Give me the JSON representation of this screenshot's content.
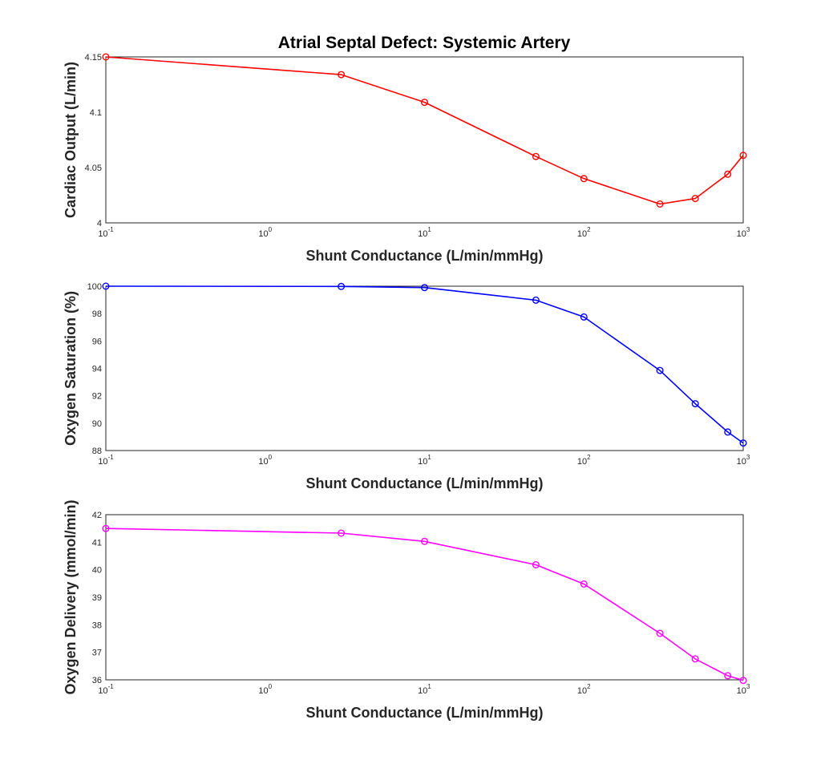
{
  "figure": {
    "title": "Atrial Septal Defect: Systemic Artery"
  },
  "chart_data": [
    {
      "type": "line",
      "title": "Atrial Septal Defect: Systemic Artery",
      "xlabel": "Shunt Conductance (L/min/mmHg)",
      "ylabel": "Cardiac Output (L/min)",
      "xscale": "log",
      "xlim": [
        0.1,
        1000
      ],
      "ylim": [
        4,
        4.15
      ],
      "x_ticks": [
        0.1,
        1,
        10,
        100,
        1000
      ],
      "x_tick_labels": [
        {
          "base": "10",
          "exp": "-1"
        },
        {
          "base": "10",
          "exp": "0"
        },
        {
          "base": "10",
          "exp": "1"
        },
        {
          "base": "10",
          "exp": "2"
        },
        {
          "base": "10",
          "exp": "3"
        }
      ],
      "y_ticks": [
        4,
        4.05,
        4.1,
        4.15
      ],
      "y_tick_labels": [
        "4",
        "4.05",
        "4.1",
        "4.15"
      ],
      "grid": true,
      "color": "#ff0000",
      "marker": "circle",
      "series": [
        {
          "x": [
            0.1,
            3,
            10,
            50,
            100,
            300,
            500,
            800,
            1000
          ],
          "y": [
            4.15,
            4.134,
            4.109,
            4.06,
            4.04,
            4.017,
            4.022,
            4.044,
            4.061
          ]
        }
      ]
    },
    {
      "type": "line",
      "title": "",
      "xlabel": "Shunt Conductance (L/min/mmHg)",
      "ylabel": "Oxygen Saturation (%)",
      "xscale": "log",
      "xlim": [
        0.1,
        1000
      ],
      "ylim": [
        88,
        100
      ],
      "x_ticks": [
        0.1,
        1,
        10,
        100,
        1000
      ],
      "x_tick_labels": [
        {
          "base": "10",
          "exp": "-1"
        },
        {
          "base": "10",
          "exp": "0"
        },
        {
          "base": "10",
          "exp": "1"
        },
        {
          "base": "10",
          "exp": "2"
        },
        {
          "base": "10",
          "exp": "3"
        }
      ],
      "y_ticks": [
        88,
        90,
        92,
        94,
        96,
        98,
        100
      ],
      "y_tick_labels": [
        "88",
        "90",
        "92",
        "94",
        "96",
        "98",
        "100"
      ],
      "grid": true,
      "color": "#0000ff",
      "marker": "circle",
      "series": [
        {
          "x": [
            0.1,
            3,
            10,
            50,
            100,
            300,
            500,
            800,
            1000
          ],
          "y": [
            100,
            99.98,
            99.9,
            98.98,
            97.75,
            93.85,
            91.42,
            89.35,
            88.55
          ]
        }
      ]
    },
    {
      "type": "line",
      "title": "",
      "xlabel": "Shunt Conductance (L/min/mmHg)",
      "ylabel": "Oxygen Delivery (mmol/min)",
      "xscale": "log",
      "xlim": [
        0.1,
        1000
      ],
      "ylim": [
        36,
        42
      ],
      "x_ticks": [
        0.1,
        1,
        10,
        100,
        1000
      ],
      "x_tick_labels": [
        {
          "base": "10",
          "exp": "-1"
        },
        {
          "base": "10",
          "exp": "0"
        },
        {
          "base": "10",
          "exp": "1"
        },
        {
          "base": "10",
          "exp": "2"
        },
        {
          "base": "10",
          "exp": "3"
        }
      ],
      "y_ticks": [
        36,
        37,
        38,
        39,
        40,
        41,
        42
      ],
      "y_tick_labels": [
        "36",
        "37",
        "38",
        "39",
        "40",
        "41",
        "42"
      ],
      "grid": true,
      "color": "#ff00ff",
      "marker": "circle",
      "series": [
        {
          "x": [
            0.1,
            3,
            10,
            50,
            100,
            300,
            500,
            800,
            1000
          ],
          "y": [
            41.5,
            41.33,
            41.03,
            40.18,
            39.48,
            37.69,
            36.76,
            36.15,
            35.98
          ]
        }
      ]
    }
  ]
}
